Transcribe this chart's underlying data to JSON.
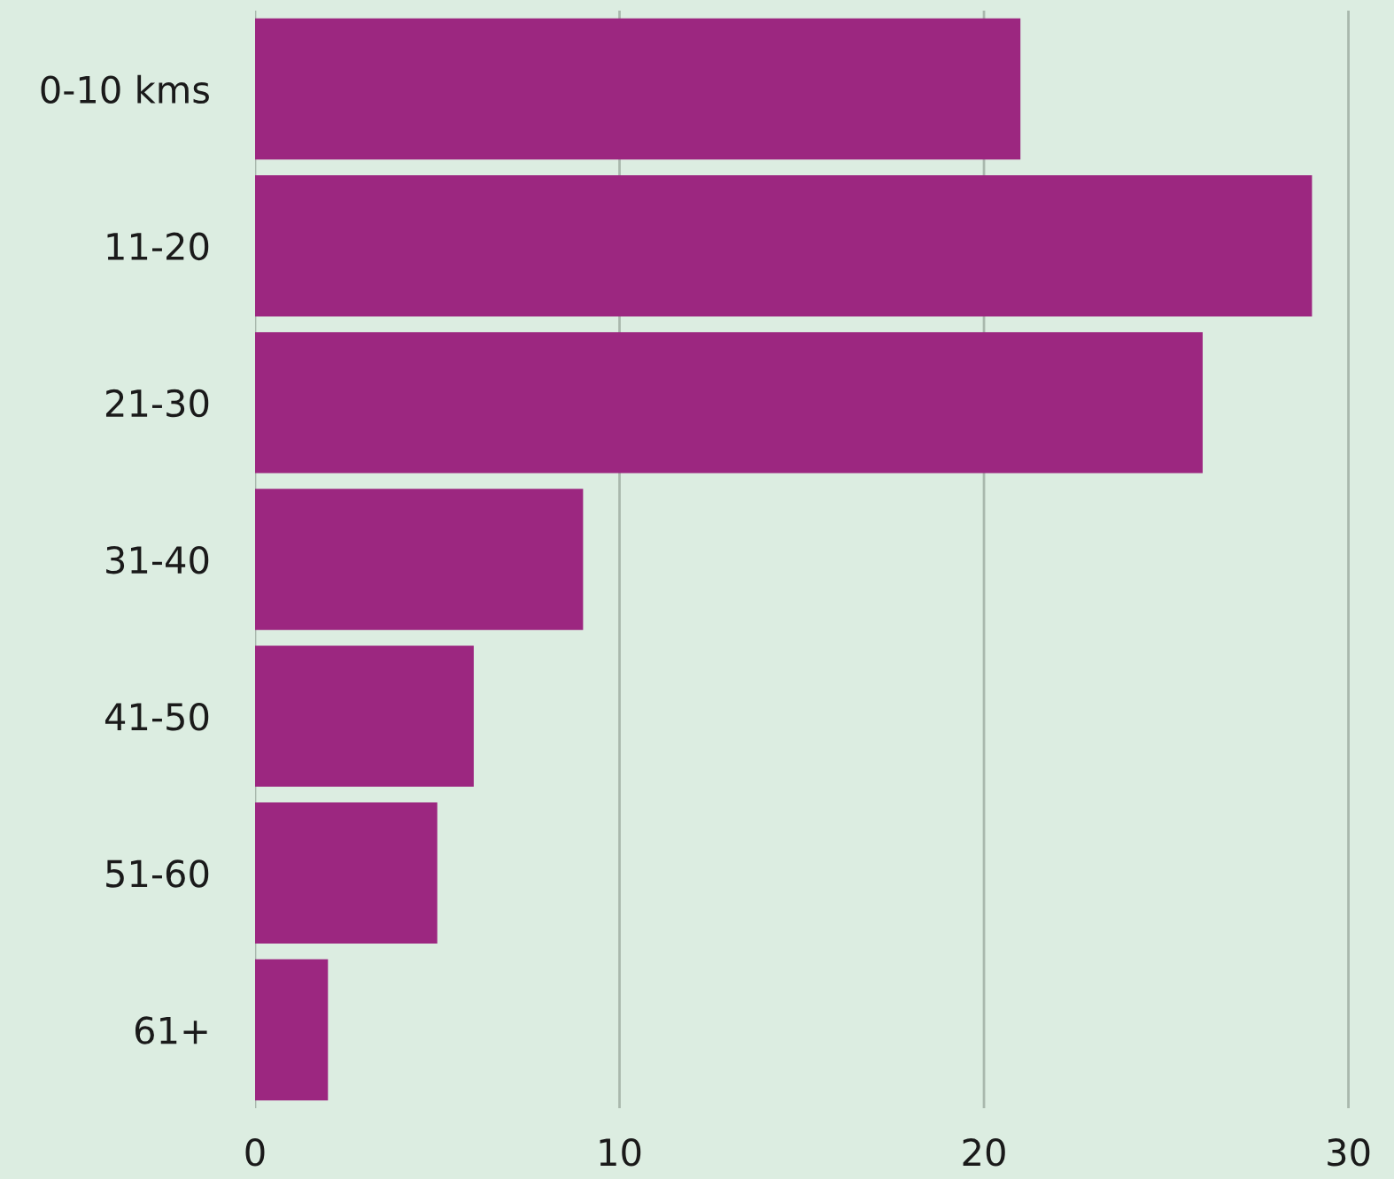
{
  "chart_data": {
    "type": "bar",
    "orientation": "horizontal",
    "categories": [
      "0-10 kms",
      "11-20",
      "21-30",
      "31-40",
      "41-50",
      "51-60",
      "61+"
    ],
    "values": [
      21,
      29,
      26,
      9,
      6,
      5,
      2
    ],
    "color": "#9c2780",
    "xlim": [
      0,
      31.25
    ],
    "xticks": [
      0,
      10,
      20,
      30
    ],
    "grid": "x"
  }
}
